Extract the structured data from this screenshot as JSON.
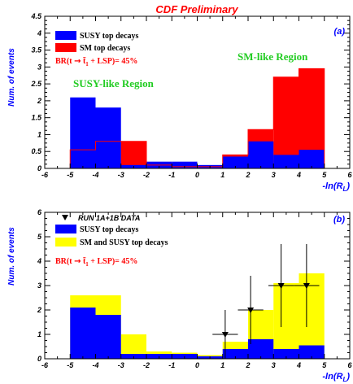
{
  "page_title": "CDF Preliminary",
  "colors": {
    "susy": "#0000ff",
    "sm": "#ff0000",
    "sm_and_susy": "#ffff00",
    "label_blue": "#0000ff",
    "region_green": "#22cc22",
    "title_red": "#ff0000"
  },
  "chart_data": [
    {
      "type": "bar",
      "panel_label": "(a)",
      "xlabel": "-ln(R_L)",
      "ylabel": "Num. of events",
      "xlim": [
        -6,
        6
      ],
      "ylim": [
        0,
        4.5
      ],
      "x_ticks": [
        "-6",
        "-5",
        "-4",
        "-3",
        "-2",
        "-1",
        "0",
        "1",
        "2",
        "3",
        "4",
        "5",
        "6"
      ],
      "y_ticks": [
        "0",
        "0.5",
        "1",
        "1.5",
        "2",
        "2.5",
        "3",
        "3.5",
        "4",
        "4.5"
      ],
      "bin_edges": [
        -5,
        -4,
        -3,
        -2,
        -1,
        0,
        1,
        2,
        3,
        4,
        5
      ],
      "series": [
        {
          "name": "SM top decays",
          "color": "#ff0000",
          "values": [
            0.55,
            0.8,
            0.8,
            0.1,
            0.05,
            0.05,
            0.4,
            1.15,
            2.7,
            2.95
          ]
        },
        {
          "name": "SUSY top decays",
          "color": "#0000ff",
          "values": [
            2.1,
            1.8,
            0.1,
            0.2,
            0.2,
            0.1,
            0.35,
            0.8,
            0.4,
            0.55
          ]
        }
      ],
      "legend": [
        "SUSY top decays",
        "SM top decays"
      ],
      "br_text": "BR(t → t̃₁ + LSP)= 45%",
      "annotations": [
        "SUSY-like Region",
        "SM-like Region"
      ]
    },
    {
      "type": "bar",
      "panel_label": "(b)",
      "xlabel": "-ln(R_L)",
      "ylabel": "Num. of events",
      "xlim": [
        -6,
        6
      ],
      "ylim": [
        0,
        6
      ],
      "x_ticks": [
        "-6",
        "-5",
        "-4",
        "-3",
        "-2",
        "-1",
        "0",
        "1",
        "2",
        "3",
        "4",
        "5",
        "6"
      ],
      "y_ticks": [
        "0",
        "1",
        "2",
        "3",
        "4",
        "5",
        "6"
      ],
      "bin_edges": [
        -5,
        -4,
        -3,
        -2,
        -1,
        0,
        1,
        2,
        3,
        4,
        5
      ],
      "series": [
        {
          "name": "SM and SUSY top decays",
          "color": "#ffff00",
          "values": [
            2.6,
            2.6,
            1.0,
            0.3,
            0.25,
            0.15,
            0.7,
            2.0,
            3.1,
            3.5
          ]
        },
        {
          "name": "SUSY top decays",
          "color": "#0000ff",
          "values": [
            2.1,
            1.8,
            0.2,
            0.2,
            0.2,
            0.1,
            0.4,
            0.8,
            0.4,
            0.55
          ]
        }
      ],
      "data_points": {
        "name": "RUN 1A+1B DATA",
        "x": [
          1.1,
          2.1,
          3.3,
          4.3
        ],
        "y": [
          1.0,
          2.0,
          3.0,
          3.0
        ],
        "yerr": [
          1.0,
          1.4,
          1.7,
          1.7
        ],
        "xerr": 0.5
      },
      "legend": [
        "RUN 1A+1B DATA",
        "SUSY top decays",
        "SM and SUSY top decays"
      ],
      "br_text": "BR(t → t̃₁ + LSP)= 45%"
    }
  ]
}
